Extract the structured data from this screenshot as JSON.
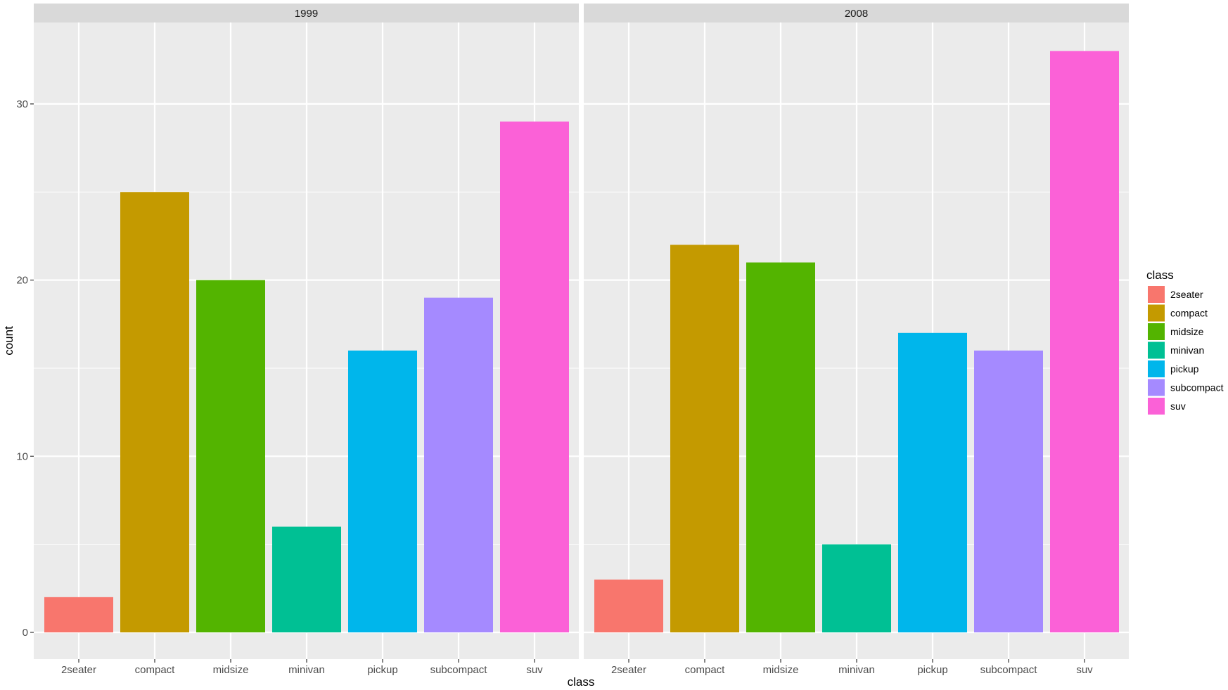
{
  "chart_data": {
    "type": "bar",
    "facet_by": "year",
    "xlabel": "class",
    "ylabel": "count",
    "ylim": [
      0,
      34
    ],
    "y_ticks": [
      0,
      10,
      20,
      30
    ],
    "categories": [
      "2seater",
      "compact",
      "midsize",
      "minivan",
      "pickup",
      "subcompact",
      "suv"
    ],
    "colors": {
      "2seater": "#F8766D",
      "compact": "#C49A00",
      "midsize": "#53B400",
      "minivan": "#00C094",
      "pickup": "#00B6EB",
      "subcompact": "#A58AFF",
      "suv": "#FB61D7"
    },
    "panels": [
      {
        "name": "1999",
        "values": [
          2,
          25,
          20,
          6,
          16,
          19,
          29
        ]
      },
      {
        "name": "2008",
        "values": [
          3,
          22,
          21,
          5,
          17,
          16,
          33
        ]
      }
    ],
    "legend": {
      "title": "class",
      "position": "right",
      "items": [
        "2seater",
        "compact",
        "midsize",
        "minivan",
        "pickup",
        "subcompact",
        "suv"
      ]
    },
    "grid": true,
    "theme": {
      "panel_background": "#EBEBEB",
      "strip_background": "#D9D9D9",
      "grid_color": "#FFFFFF"
    }
  }
}
